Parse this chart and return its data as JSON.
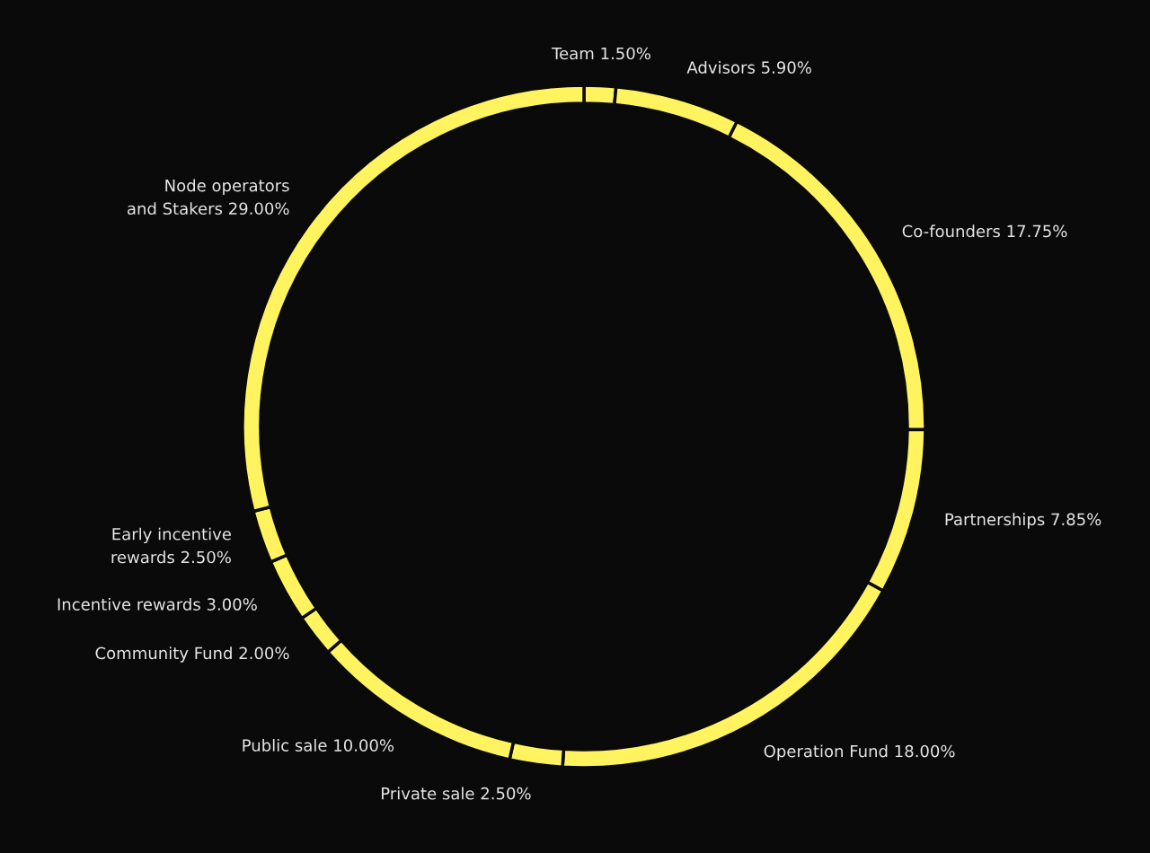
{
  "chart_data": {
    "type": "donut",
    "categories": [
      "Team",
      "Advisors",
      "Co-founders",
      "Partnerships",
      "Operation Fund",
      "Private sale",
      "Public sale",
      "Community Fund",
      "Incentive rewards",
      "Early incentive rewards",
      "Node operators and Stakers"
    ],
    "values": [
      1.5,
      5.9,
      17.75,
      7.85,
      18.0,
      2.5,
      10.0,
      2.0,
      3.0,
      2.5,
      29.0
    ],
    "value_labels": [
      "1.50%",
      "5.90%",
      "17.75%",
      "7.85%",
      "18.00%",
      "2.50%",
      "10.00%",
      "2.00%",
      "3.00%",
      "2.50%",
      "29.00%"
    ],
    "colors": [
      "#fff45f",
      "#fff45f",
      "#fff45f",
      "#fff45f",
      "#fff45f",
      "#fff45f",
      "#fff45f",
      "#fff45f",
      "#fff45f",
      "#fff45f",
      "#fff45f"
    ],
    "legend": false
  }
}
